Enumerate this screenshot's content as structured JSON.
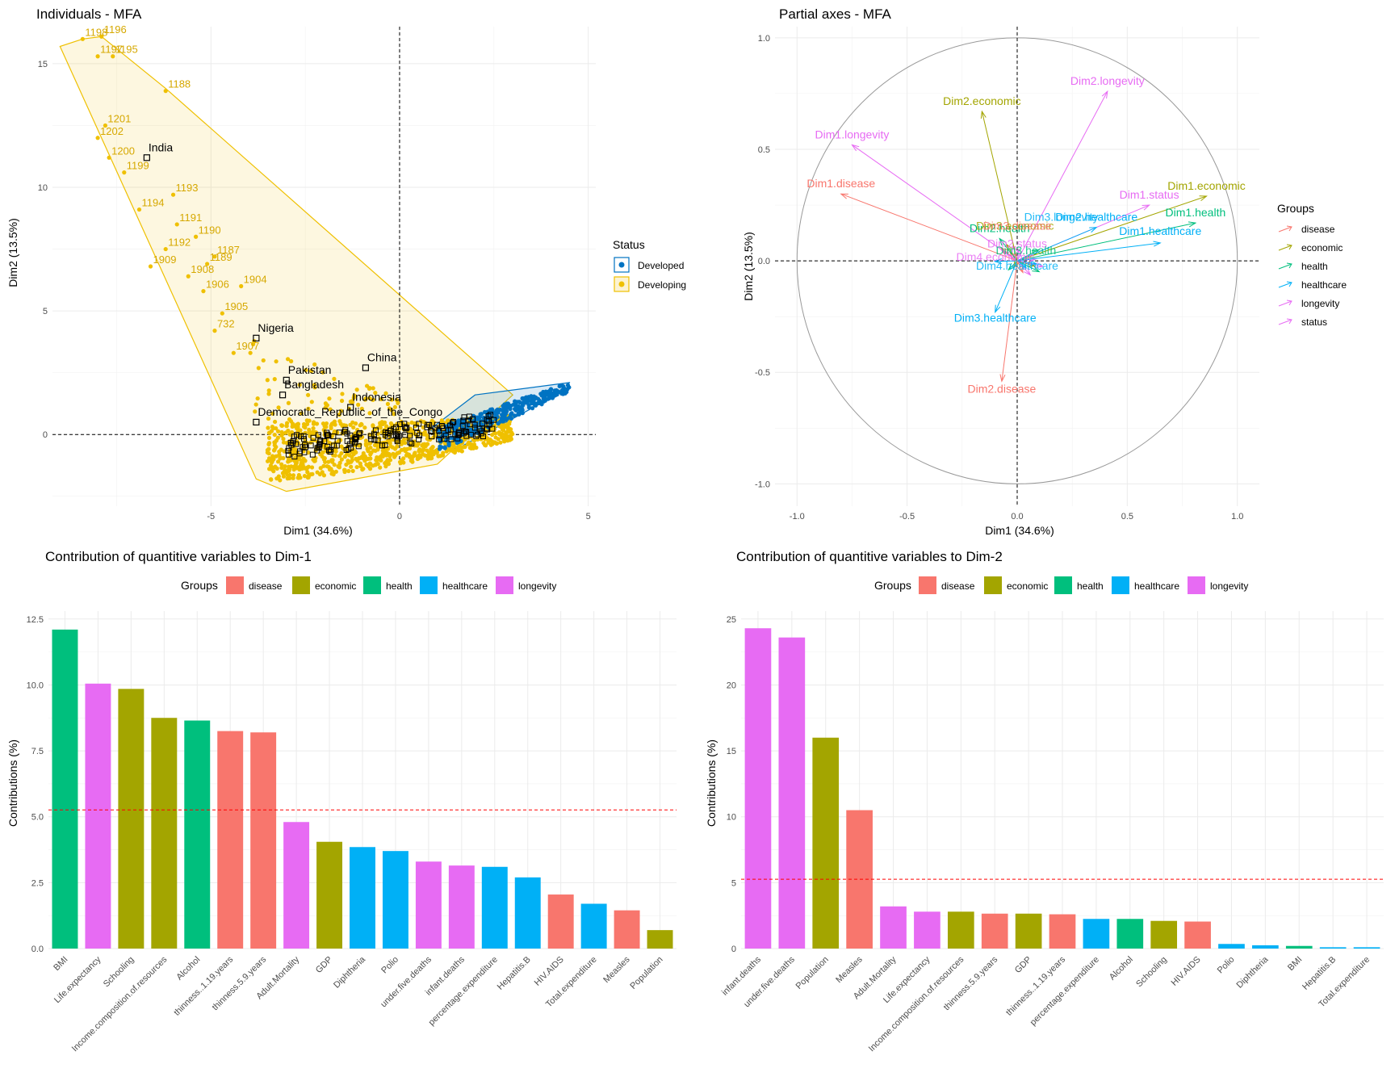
{
  "colors": {
    "disease": "#F8766D",
    "economic": "#A3A500",
    "health": "#00BF7D",
    "healthcare": "#00B0F6",
    "longevity": "#E76BF3",
    "status": "#E76BF3",
    "developed": "#0073C2",
    "developing": "#EFC000",
    "refline": "#FF0000"
  },
  "chart_data": [
    {
      "type": "scatter",
      "title": "Individuals - MFA",
      "xlabel": "Dim1 (34.6%)",
      "ylabel": "Dim2 (13.5%)",
      "xlim": [
        -9.2,
        5.2
      ],
      "ylim": [
        -2.9,
        16.5
      ],
      "xticks": [
        "-5",
        "0",
        "5"
      ],
      "xtick_values": [
        -5,
        0,
        5
      ],
      "yticks": [
        "0",
        "5",
        "10",
        "15"
      ],
      "ytick_values": [
        0,
        5,
        10,
        15
      ],
      "grid": true,
      "legend": {
        "title": "Status",
        "placement": "right",
        "entries": [
          "Developed",
          "Developing"
        ]
      },
      "developing_hull": [
        [
          -8.4,
          16.0
        ],
        [
          -7.9,
          16.1
        ],
        [
          -6.2,
          14.0
        ],
        [
          3.0,
          1.6
        ],
        [
          1.0,
          -1.2
        ],
        [
          -3.0,
          -2.3
        ],
        [
          -3.8,
          -1.8
        ],
        [
          -9.0,
          15.7
        ]
      ],
      "developed_hull": [
        [
          0.8,
          0.2
        ],
        [
          2.0,
          1.6
        ],
        [
          4.5,
          2.1
        ],
        [
          4.4,
          1.8
        ],
        [
          1.5,
          -0.6
        ]
      ],
      "labeled_points": [
        {
          "label": "1196",
          "x": -7.9,
          "y": 16.1
        },
        {
          "label": "1198",
          "x": -8.4,
          "y": 16.0
        },
        {
          "label": "1195",
          "x": -7.6,
          "y": 15.3
        },
        {
          "label": "1197",
          "x": -8.0,
          "y": 15.3
        },
        {
          "label": "1188",
          "x": -6.2,
          "y": 13.9
        },
        {
          "label": "1201",
          "x": -7.8,
          "y": 12.5
        },
        {
          "label": "1202",
          "x": -8.0,
          "y": 12.0
        },
        {
          "label": "1200",
          "x": -7.7,
          "y": 11.2
        },
        {
          "label": "1199",
          "x": -7.3,
          "y": 10.6
        },
        {
          "label": "1193",
          "x": -6.0,
          "y": 9.7
        },
        {
          "label": "1194",
          "x": -6.9,
          "y": 9.1
        },
        {
          "label": "1191",
          "x": -5.9,
          "y": 8.5
        },
        {
          "label": "1190",
          "x": -5.4,
          "y": 8.0
        },
        {
          "label": "1187",
          "x": -4.9,
          "y": 7.2
        },
        {
          "label": "1192",
          "x": -6.2,
          "y": 7.5
        },
        {
          "label": "1909",
          "x": -6.6,
          "y": 6.8
        },
        {
          "label": "1189",
          "x": -5.1,
          "y": 6.9
        },
        {
          "label": "1908",
          "x": -5.6,
          "y": 6.4
        },
        {
          "label": "1906",
          "x": -5.2,
          "y": 5.8
        },
        {
          "label": "1904",
          "x": -4.2,
          "y": 6.0
        },
        {
          "label": "1905",
          "x": -4.7,
          "y": 4.9
        },
        {
          "label": "732",
          "x": -4.9,
          "y": 4.2
        },
        {
          "label": "1907",
          "x": -4.4,
          "y": 3.3
        }
      ],
      "country_points": [
        {
          "label": "India",
          "x": -6.7,
          "y": 11.2
        },
        {
          "label": "Nigeria",
          "x": -3.8,
          "y": 3.9
        },
        {
          "label": "China",
          "x": -0.9,
          "y": 2.7
        },
        {
          "label": "Pakistan",
          "x": -3.0,
          "y": 2.2
        },
        {
          "label": "Bangladesh",
          "x": -3.1,
          "y": 1.6
        },
        {
          "label": "Democratic_Republic_of_the_Congo",
          "x": -3.8,
          "y": 0.5
        },
        {
          "label": "Indonesia",
          "x": -1.3,
          "y": 1.1
        }
      ]
    },
    {
      "type": "scatter",
      "title": "Partial axes - MFA",
      "xlabel": "Dim1 (34.6%)",
      "ylabel": "Dim2 (13.5%)",
      "xlim": [
        -1.1,
        1.1
      ],
      "ylim": [
        -1.1,
        1.05
      ],
      "xticks": [
        "-1.0",
        "-0.5",
        "0.0",
        "0.5",
        "1.0"
      ],
      "xtick_values": [
        -1.0,
        -0.5,
        0.0,
        0.5,
        1.0
      ],
      "yticks": [
        "-1.0",
        "-0.5",
        "0.0",
        "0.5",
        "1.0"
      ],
      "ytick_values": [
        -1.0,
        -0.5,
        0.0,
        0.5,
        1.0
      ],
      "grid": true,
      "legend": {
        "title": "Groups",
        "placement": "right",
        "entries": [
          "disease",
          "economic",
          "health",
          "healthcare",
          "longevity",
          "status"
        ]
      },
      "arrows": [
        {
          "label": "Dim2.longevity",
          "group": "longevity",
          "x": 0.41,
          "y": 0.76
        },
        {
          "label": "Dim2.economic",
          "group": "economic",
          "x": -0.16,
          "y": 0.67
        },
        {
          "label": "Dim1.longevity",
          "group": "longevity",
          "x": -0.75,
          "y": 0.52
        },
        {
          "label": "Dim1.disease",
          "group": "disease",
          "x": -0.8,
          "y": 0.3
        },
        {
          "label": "Dim1.economic",
          "group": "economic",
          "x": 0.86,
          "y": 0.29
        },
        {
          "label": "Dim1.status",
          "group": "status",
          "x": 0.6,
          "y": 0.25
        },
        {
          "label": "Dim1.health",
          "group": "health",
          "x": 0.81,
          "y": 0.17
        },
        {
          "label": "Dim1.healthcare",
          "group": "healthcare",
          "x": 0.65,
          "y": 0.08
        },
        {
          "label": "Dim2.health",
          "group": "health",
          "x": -0.08,
          "y": 0.1
        },
        {
          "label": "Dim3.healthcare",
          "group": "healthcare",
          "x": -0.1,
          "y": -0.23
        },
        {
          "label": "Dim2.disease",
          "group": "disease",
          "x": -0.07,
          "y": -0.54
        },
        {
          "label": "Dim2.healthcare",
          "group": "healthcare",
          "x": 0.36,
          "y": 0.15
        }
      ],
      "crowded_labels": [
        {
          "text": "Dim3.economic",
          "group": "economic",
          "x": -0.01,
          "y": 0.14
        },
        {
          "text": "Dim3.disease",
          "group": "disease",
          "x": 0.0,
          "y": 0.14
        },
        {
          "text": "Dim3.longevity",
          "group": "healthcare",
          "x": 0.2,
          "y": 0.18
        },
        {
          "text": "Dim4.economic",
          "group": "status",
          "x": -0.1,
          "y": 0.0
        },
        {
          "text": "Dim4.healthcare",
          "group": "healthcare",
          "x": 0.0,
          "y": -0.04
        },
        {
          "text": "Dim2.status",
          "group": "status",
          "x": 0.0,
          "y": 0.06
        },
        {
          "text": "Dim3.health",
          "group": "health",
          "x": 0.04,
          "y": 0.03
        }
      ]
    },
    {
      "type": "bar",
      "title": "Contribution of quantitive variables to Dim-1",
      "xlabel": "",
      "ylabel": "Contributions (%)",
      "ylim": [
        0,
        12.8
      ],
      "yticks": [
        "0.0",
        "2.5",
        "5.0",
        "7.5",
        "10.0",
        "12.5"
      ],
      "ytick_values": [
        0,
        2.5,
        5.0,
        7.5,
        10.0,
        12.5
      ],
      "reference_line": 5.26,
      "grid": true,
      "legend": {
        "title": "Groups",
        "placement": "top",
        "entries": [
          "disease",
          "economic",
          "health",
          "healthcare",
          "longevity"
        ]
      },
      "categories": [
        "BMI",
        "Life.expectancy",
        "Schooling",
        "Income.composition.of.resources",
        "Alcohol",
        "thinness..1.19.years",
        "thinness.5.9.years",
        "Adult.Mortality",
        "GDP",
        "Diphtheria",
        "Polio",
        "under.five.deaths",
        "infant.deaths",
        "percentage.expenditure",
        "Hepatitis.B",
        "HIV.AIDS",
        "Total.expenditure",
        "Measles",
        "Population"
      ],
      "groups": [
        "health",
        "longevity",
        "economic",
        "economic",
        "health",
        "disease",
        "disease",
        "longevity",
        "economic",
        "healthcare",
        "healthcare",
        "longevity",
        "longevity",
        "healthcare",
        "healthcare",
        "disease",
        "healthcare",
        "disease",
        "economic"
      ],
      "values": [
        12.1,
        10.05,
        9.85,
        8.75,
        8.65,
        8.25,
        8.2,
        4.8,
        4.05,
        3.85,
        3.7,
        3.3,
        3.15,
        3.1,
        2.7,
        2.05,
        1.7,
        1.45,
        0.7
      ]
    },
    {
      "type": "bar",
      "title": "Contribution of quantitive variables to Dim-2",
      "xlabel": "",
      "ylabel": "Contributions (%)",
      "ylim": [
        0,
        25.6
      ],
      "yticks": [
        "0",
        "5",
        "10",
        "15",
        "20",
        "25"
      ],
      "ytick_values": [
        0,
        5,
        10,
        15,
        20,
        25
      ],
      "reference_line": 5.26,
      "grid": true,
      "legend": {
        "title": "Groups",
        "placement": "top",
        "entries": [
          "disease",
          "economic",
          "health",
          "healthcare",
          "longevity"
        ]
      },
      "categories": [
        "infant.deaths",
        "under.five.deaths",
        "Population",
        "Measles",
        "Adult.Mortality",
        "Life.expectancy",
        "Income.composition.of.resources",
        "thinness.5.9.years",
        "GDP",
        "thinness..1.19.years",
        "percentage.expenditure",
        "Alcohol",
        "Schooling",
        "HIV.AIDS",
        "Polio",
        "Diphtheria",
        "BMI",
        "Hepatitis.B",
        "Total.expenditure"
      ],
      "groups": [
        "longevity",
        "longevity",
        "economic",
        "disease",
        "longevity",
        "longevity",
        "economic",
        "disease",
        "economic",
        "disease",
        "healthcare",
        "health",
        "economic",
        "disease",
        "healthcare",
        "healthcare",
        "health",
        "healthcare",
        "healthcare"
      ],
      "values": [
        24.3,
        23.6,
        16.0,
        10.5,
        3.2,
        2.8,
        2.8,
        2.65,
        2.65,
        2.6,
        2.25,
        2.25,
        2.1,
        2.05,
        0.35,
        0.25,
        0.2,
        0.1,
        0.1
      ]
    }
  ]
}
